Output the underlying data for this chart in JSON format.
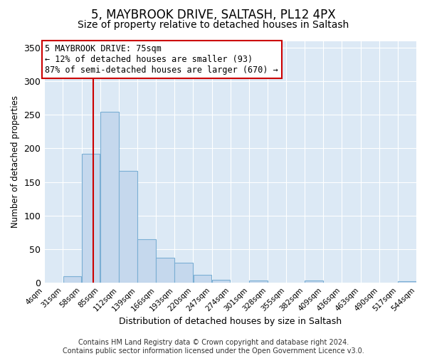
{
  "title": "5, MAYBROOK DRIVE, SALTASH, PL12 4PX",
  "subtitle": "Size of property relative to detached houses in Saltash",
  "xlabel": "Distribution of detached houses by size in Saltash",
  "ylabel": "Number of detached properties",
  "bin_edges": [
    4,
    31,
    58,
    85,
    112,
    139,
    166,
    193,
    220,
    247,
    274,
    301,
    328,
    355,
    382,
    409,
    436,
    463,
    490,
    517,
    544
  ],
  "bin_labels": [
    "4sqm",
    "31sqm",
    "58sqm",
    "85sqm",
    "112sqm",
    "139sqm",
    "166sqm",
    "193sqm",
    "220sqm",
    "247sqm",
    "274sqm",
    "301sqm",
    "328sqm",
    "355sqm",
    "382sqm",
    "409sqm",
    "436sqm",
    "463sqm",
    "490sqm",
    "517sqm",
    "544sqm"
  ],
  "bar_heights": [
    0,
    10,
    192,
    255,
    167,
    65,
    37,
    30,
    12,
    5,
    0,
    3,
    0,
    0,
    3,
    0,
    0,
    0,
    0,
    2
  ],
  "bar_color": "#c5d8ed",
  "bar_edge_color": "#7bafd4",
  "property_line_x": 75,
  "property_line_color": "#cc0000",
  "annotation_line1": "5 MAYBROOK DRIVE: 75sqm",
  "annotation_line2": "← 12% of detached houses are smaller (93)",
  "annotation_line3": "87% of semi-detached houses are larger (670) →",
  "annotation_box_color": "#ffffff",
  "annotation_box_edge_color": "#cc0000",
  "ylim": [
    0,
    360
  ],
  "yticks": [
    0,
    50,
    100,
    150,
    200,
    250,
    300,
    350
  ],
  "background_color": "#ffffff",
  "plot_background_color": "#dce9f5",
  "grid_color": "#ffffff",
  "footer_text": "Contains HM Land Registry data © Crown copyright and database right 2024.\nContains public sector information licensed under the Open Government Licence v3.0.",
  "title_fontsize": 12,
  "subtitle_fontsize": 10,
  "annotation_fontsize": 8.5,
  "footer_fontsize": 7,
  "ylabel_fontsize": 8.5,
  "xlabel_fontsize": 9
}
